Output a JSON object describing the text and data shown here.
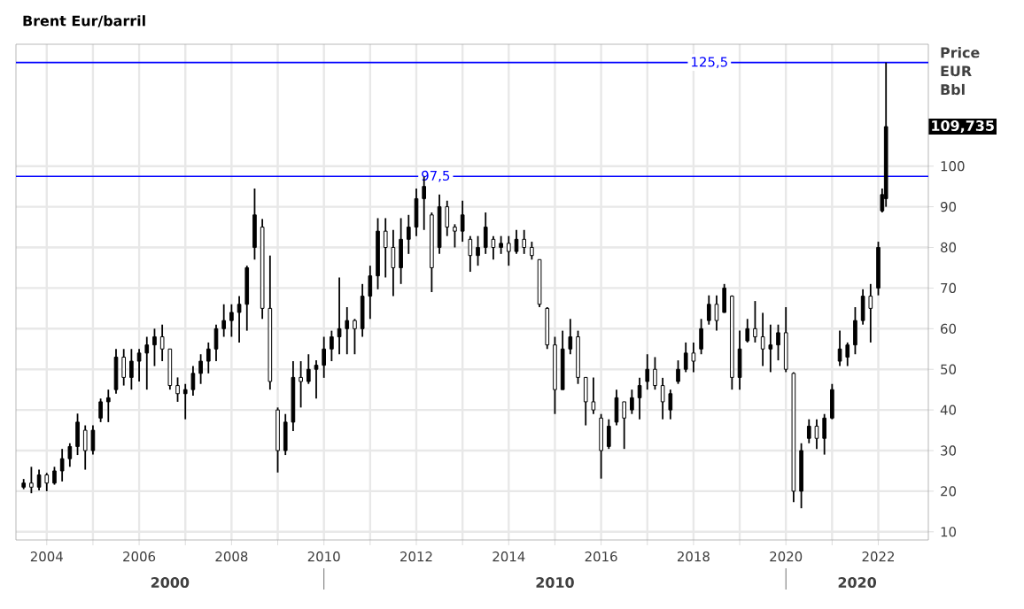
{
  "chart_data": {
    "type": "candlestick",
    "title": "Brent Eur/barril",
    "ylabel": "Price EUR Bbl",
    "x": [
      "2003-07",
      "2003-09",
      "2003-11",
      "2004-01",
      "2004-03",
      "2004-05",
      "2004-07",
      "2004-09",
      "2004-11",
      "2005-01",
      "2005-03",
      "2005-05",
      "2005-07",
      "2005-09",
      "2005-11",
      "2006-01",
      "2006-03",
      "2006-05",
      "2006-07",
      "2006-09",
      "2006-11",
      "2007-01",
      "2007-03",
      "2007-05",
      "2007-07",
      "2007-09",
      "2007-11",
      "2008-01",
      "2008-03",
      "2008-05",
      "2008-07",
      "2008-09",
      "2008-11",
      "2009-01",
      "2009-03",
      "2009-05",
      "2009-07",
      "2009-09",
      "2009-11",
      "2010-01",
      "2010-03",
      "2010-05",
      "2010-07",
      "2010-09",
      "2010-11",
      "2011-01",
      "2011-03",
      "2011-05",
      "2011-07",
      "2011-09",
      "2011-11",
      "2012-01",
      "2012-03",
      "2012-05",
      "2012-07",
      "2012-09",
      "2012-11",
      "2013-01",
      "2013-03",
      "2013-05",
      "2013-07",
      "2013-09",
      "2013-11",
      "2014-01",
      "2014-03",
      "2014-05",
      "2014-07",
      "2014-09",
      "2014-11",
      "2015-01",
      "2015-03",
      "2015-05",
      "2015-07",
      "2015-09",
      "2015-11",
      "2016-01",
      "2016-03",
      "2016-05",
      "2016-07",
      "2016-09",
      "2016-11",
      "2017-01",
      "2017-03",
      "2017-05",
      "2017-07",
      "2017-09",
      "2017-11",
      "2018-01",
      "2018-03",
      "2018-05",
      "2018-07",
      "2018-09",
      "2018-11",
      "2019-01",
      "2019-03",
      "2019-05",
      "2019-07",
      "2019-09",
      "2019-11",
      "2020-01",
      "2020-03",
      "2020-05",
      "2020-07",
      "2020-09",
      "2020-11",
      "2021-01",
      "2021-03",
      "2021-05",
      "2021-07",
      "2021-09",
      "2021-11",
      "2022-01",
      "2022-02",
      "2022-03"
    ],
    "ohlc": [
      [
        21,
        23,
        20.5,
        22
      ],
      [
        22,
        26,
        19.5,
        21
      ],
      [
        21,
        25.3,
        20.2,
        24
      ],
      [
        24,
        24.5,
        20,
        22
      ],
      [
        22,
        26,
        21.6,
        25
      ],
      [
        25,
        30.4,
        22.4,
        28
      ],
      [
        28,
        31.8,
        26,
        31
      ],
      [
        31,
        39.1,
        28.9,
        37
      ],
      [
        35,
        36.2,
        25.3,
        30
      ],
      [
        30,
        36.2,
        29,
        35
      ],
      [
        38,
        42.8,
        37,
        42
      ],
      [
        42,
        45,
        37,
        43
      ],
      [
        45,
        55,
        44,
        53
      ],
      [
        53,
        55,
        46,
        48
      ],
      [
        48,
        55,
        45,
        52
      ],
      [
        52,
        55,
        47,
        54
      ],
      [
        54,
        58,
        45,
        56
      ],
      [
        56,
        60,
        50.8,
        58
      ],
      [
        58,
        61,
        52,
        55
      ],
      [
        55,
        55,
        45,
        46
      ],
      [
        46,
        48,
        42,
        44
      ],
      [
        44,
        46.4,
        37.7,
        45
      ],
      [
        45,
        50.8,
        43.5,
        49
      ],
      [
        49,
        53.7,
        46.4,
        52
      ],
      [
        52,
        56.6,
        49,
        55
      ],
      [
        55,
        61,
        52,
        60
      ],
      [
        60,
        66,
        58,
        62
      ],
      [
        62,
        66,
        58,
        64
      ],
      [
        64,
        68,
        56.6,
        66
      ],
      [
        66,
        75.5,
        59.5,
        75
      ],
      [
        80,
        94.5,
        77,
        88
      ],
      [
        85,
        87,
        62.4,
        65
      ],
      [
        65,
        78,
        45,
        47
      ],
      [
        40,
        40.6,
        24.6,
        30
      ],
      [
        30,
        39,
        28.9,
        37
      ],
      [
        37,
        52,
        34.8,
        48
      ],
      [
        48,
        52,
        40.6,
        47
      ],
      [
        47,
        53.7,
        46.4,
        50
      ],
      [
        50,
        52.2,
        42.8,
        51
      ],
      [
        51,
        58,
        47.9,
        55
      ],
      [
        55,
        59.5,
        52,
        58
      ],
      [
        58,
        72.6,
        53.7,
        60
      ],
      [
        60,
        65.3,
        53.7,
        62
      ],
      [
        62,
        62.4,
        53.7,
        60
      ],
      [
        60,
        71,
        58,
        68
      ],
      [
        68,
        75.5,
        62.4,
        73
      ],
      [
        73,
        87.2,
        69.7,
        84
      ],
      [
        84,
        87.2,
        72.6,
        80
      ],
      [
        80,
        84.3,
        68,
        75
      ],
      [
        75,
        87.2,
        71,
        82
      ],
      [
        82,
        88,
        78.4,
        85
      ],
      [
        85,
        94.5,
        82.8,
        92
      ],
      [
        92,
        97.4,
        84.3,
        95
      ],
      [
        88,
        88.6,
        69,
        75
      ],
      [
        80,
        93,
        78.4,
        90
      ],
      [
        90,
        91.5,
        82.8,
        85
      ],
      [
        85,
        85.7,
        80,
        84
      ],
      [
        84,
        91.5,
        81.4,
        88
      ],
      [
        82,
        82.8,
        74,
        78
      ],
      [
        78,
        82.8,
        75.5,
        80
      ],
      [
        80,
        88.6,
        78.4,
        85
      ],
      [
        82,
        82.8,
        77,
        80
      ],
      [
        80,
        82.8,
        78.4,
        81
      ],
      [
        81,
        82.8,
        75.5,
        79
      ],
      [
        79,
        84.3,
        78.4,
        82
      ],
      [
        82,
        84.3,
        78.4,
        80
      ],
      [
        80,
        81.4,
        77,
        78
      ],
      [
        77,
        77,
        65.3,
        66
      ],
      [
        65,
        65.3,
        55,
        56
      ],
      [
        56,
        58,
        39,
        45
      ],
      [
        45,
        59.5,
        45,
        55
      ],
      [
        55,
        62.4,
        53.7,
        58
      ],
      [
        58,
        59.5,
        46.4,
        48
      ],
      [
        48,
        48,
        36.2,
        42
      ],
      [
        42,
        48,
        39,
        40
      ],
      [
        38,
        39,
        23.1,
        30
      ],
      [
        31,
        37.7,
        30.4,
        36
      ],
      [
        37,
        45,
        36.2,
        43
      ],
      [
        42,
        42,
        30.4,
        38
      ],
      [
        40,
        45,
        39,
        43
      ],
      [
        43,
        47.9,
        37.7,
        46
      ],
      [
        47,
        53.7,
        45,
        50
      ],
      [
        50,
        53,
        45,
        46
      ],
      [
        46,
        47.9,
        37.7,
        42
      ],
      [
        40,
        45,
        37.7,
        44
      ],
      [
        47,
        52.2,
        46.4,
        50
      ],
      [
        50,
        56.6,
        49.3,
        54
      ],
      [
        54,
        56.6,
        49.3,
        52
      ],
      [
        55,
        62.4,
        53.7,
        60
      ],
      [
        62,
        68.2,
        61,
        66
      ],
      [
        66,
        68.2,
        59.5,
        62
      ],
      [
        64,
        71,
        63.9,
        70
      ],
      [
        68,
        68.2,
        45,
        48
      ],
      [
        48,
        59.5,
        45,
        55
      ],
      [
        57,
        62.4,
        56.6,
        60
      ],
      [
        60,
        66.8,
        56.6,
        58
      ],
      [
        58,
        63.9,
        50.8,
        55
      ],
      [
        55,
        61,
        49.3,
        56
      ],
      [
        56,
        61,
        52.2,
        59
      ],
      [
        59,
        65.3,
        49.3,
        50
      ],
      [
        49,
        49.3,
        17.3,
        20
      ],
      [
        20,
        31.8,
        15.8,
        30
      ],
      [
        33,
        37.7,
        31.8,
        36
      ],
      [
        36,
        37.7,
        30.4,
        33
      ],
      [
        33,
        39,
        29,
        38
      ],
      [
        38,
        46.4,
        37.7,
        45
      ],
      [
        52,
        59.5,
        50.8,
        55
      ],
      [
        53,
        56.6,
        50.8,
        56
      ],
      [
        56,
        65.3,
        53.7,
        62
      ],
      [
        62,
        69.7,
        61,
        68
      ],
      [
        68,
        71,
        56.6,
        65
      ],
      [
        70,
        81.4,
        68.2,
        80
      ],
      [
        89,
        94.5,
        88.6,
        93
      ],
      [
        92,
        125.5,
        90,
        109.735
      ]
    ],
    "color": "#000000",
    "xlim": [
      "2003-05",
      "2023-02"
    ],
    "xticks": [
      "2004",
      {
        "value": "2005",
        "label": null
      },
      "2006",
      {
        "value": "2007",
        "label": null
      },
      "2008",
      {
        "value": "2009",
        "label": null
      },
      "2010",
      {
        "value": "2011",
        "label": null
      },
      "2012",
      {
        "value": "2013",
        "label": null
      },
      "2014",
      {
        "value": "2015",
        "label": null
      },
      "2016",
      {
        "value": "2017",
        "label": null
      },
      "2018",
      {
        "value": "2019",
        "label": null
      },
      "2020",
      {
        "value": "2021",
        "label": null
      },
      "2022"
    ],
    "ylim": [
      8,
      130
    ],
    "yticks": [
      10,
      20,
      30,
      40,
      50,
      60,
      70,
      80,
      90,
      100
    ],
    "grid": true,
    "ref_lines": [
      {
        "axis": "y",
        "value": 125.5,
        "label": "125,5",
        "color": "#0000ff"
      },
      {
        "axis": "y",
        "value": 97.5,
        "label": "97,5",
        "color": "#0000ff"
      }
    ],
    "annotations": [
      "2000",
      "2010",
      "2020",
      "109,735"
    ]
  }
}
